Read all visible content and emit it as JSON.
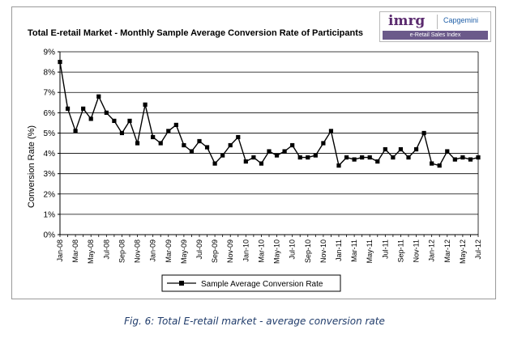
{
  "chart_data": {
    "type": "line",
    "title": "Total E-retail Market - Monthly Sample Average Conversion Rate of Participants",
    "ylabel": "Conversion Rate (%)",
    "xlabel": "",
    "ylim": [
      0,
      9
    ],
    "yticks": [
      "0%",
      "1%",
      "2%",
      "3%",
      "4%",
      "5%",
      "6%",
      "7%",
      "8%",
      "9%"
    ],
    "grid": "horizontal",
    "legend_position": "bottom",
    "x": [
      "Jan-08",
      "Feb-08",
      "Mar-08",
      "Apr-08",
      "May-08",
      "Jun-08",
      "Jul-08",
      "Aug-08",
      "Sep-08",
      "Oct-08",
      "Nov-08",
      "Dec-08",
      "Jan-09",
      "Feb-09",
      "Mar-09",
      "Apr-09",
      "May-09",
      "Jun-09",
      "Jul-09",
      "Aug-09",
      "Sep-09",
      "Oct-09",
      "Nov-09",
      "Dec-09",
      "Jan-10",
      "Feb-10",
      "Mar-10",
      "Apr-10",
      "May-10",
      "Jun-10",
      "Jul-10",
      "Aug-10",
      "Sep-10",
      "Oct-10",
      "Nov-10",
      "Dec-10",
      "Jan-11",
      "Feb-11",
      "Mar-11",
      "Apr-11",
      "May-11",
      "Jun-11",
      "Jul-11",
      "Aug-11",
      "Sep-11",
      "Oct-11",
      "Nov-11",
      "Dec-11",
      "Jan-12",
      "Feb-12",
      "Mar-12",
      "Apr-12",
      "May-12",
      "Jun-12",
      "Jul-12"
    ],
    "x_tick_labels": [
      "Jan-08",
      "Mar-08",
      "May-08",
      "Jul-08",
      "Sep-08",
      "Nov-08",
      "Jan-09",
      "Mar-09",
      "May-09",
      "Jul-09",
      "Sep-09",
      "Nov-09",
      "Jan-10",
      "Mar-10",
      "May-10",
      "Jul-10",
      "Sep-10",
      "Nov-10",
      "Jan-11",
      "Mar-11",
      "May-11",
      "Jul-11",
      "Sep-11",
      "Nov-11",
      "Jan-12",
      "Mar-12",
      "May-12",
      "Jul-12"
    ],
    "series": [
      {
        "name": "Sample Average Conversion Rate",
        "color": "#000000",
        "marker": "square",
        "values": [
          8.5,
          6.2,
          5.1,
          6.2,
          5.7,
          6.8,
          6.0,
          5.6,
          5.0,
          5.6,
          4.5,
          6.4,
          4.8,
          4.5,
          5.1,
          5.4,
          4.4,
          4.1,
          4.6,
          4.3,
          3.5,
          3.9,
          4.4,
          4.8,
          3.6,
          3.8,
          3.5,
          4.1,
          3.9,
          4.1,
          4.4,
          3.8,
          3.8,
          3.9,
          4.5,
          5.1,
          3.4,
          3.8,
          3.7,
          3.8,
          3.8,
          3.6,
          4.2,
          3.8,
          4.2,
          3.8,
          4.2,
          5.0,
          3.5,
          3.4,
          4.1,
          3.7,
          3.8,
          3.7,
          3.8
        ]
      }
    ]
  },
  "logo": {
    "brand": "imrg",
    "partner": "Capgemini",
    "index_name": "e-Retail Sales Index"
  },
  "caption": "Fig. 6: Total E-retail market - average conversion rate"
}
